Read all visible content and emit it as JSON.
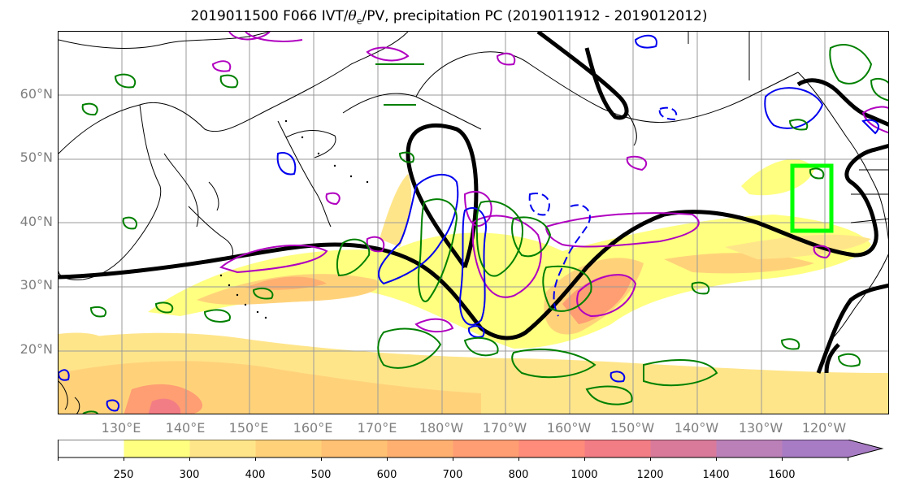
{
  "title": {
    "prefix": "2019011500 F066 IVT/",
    "theta": "θ",
    "sub": "e",
    "suffix": "/PV, precipitation PC (2019011912 - 2019012012)"
  },
  "lat_labels": [
    "60°N",
    "50°N",
    "40°N",
    "30°N",
    "20°N"
  ],
  "lon_labels": [
    "130°E",
    "140°E",
    "150°E",
    "160°E",
    "170°E",
    "180°W",
    "170°W",
    "160°W",
    "150°W",
    "140°W",
    "130°W",
    "120°W"
  ],
  "colorbar": {
    "ticks": [
      "250",
      "300",
      "400",
      "500",
      "600",
      "700",
      "800",
      "1000",
      "1200",
      "1400",
      "1600"
    ],
    "colors": [
      "#ffffff",
      "#ffff80",
      "#ffe58a",
      "#ffd27a",
      "#ffc173",
      "#ffb070",
      "#ff9d73",
      "#ff8b7a",
      "#f37d85",
      "#d97a9a",
      "#bb80b8",
      "#a87cc4"
    ]
  },
  "chart_data": {
    "type": "map",
    "variable": "integrated vapor transport (shaded)",
    "lat_range": [
      10,
      70
    ],
    "lon_range": [
      120,
      250
    ],
    "colorbar_levels": [
      250,
      300,
      400,
      500,
      600,
      700,
      800,
      1000,
      1200,
      1400,
      1600
    ],
    "highlight_box_color": "#00ff00",
    "contour_colors": {
      "theta_e": "#000000",
      "pv_positive": "#a000c8",
      "pv_negative": "#0000ff",
      "precip_pc": "#008000"
    }
  }
}
